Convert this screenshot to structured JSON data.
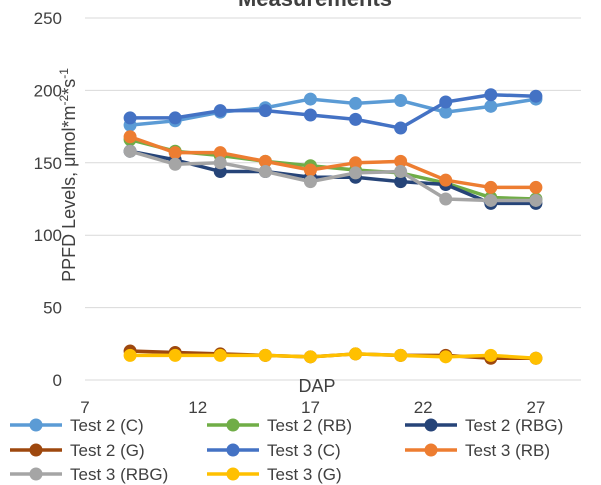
{
  "chart_data": {
    "type": "line",
    "title": "Measurements",
    "xlabel": "DAP",
    "ylabel": "PPFD Levels, μmol*m",
    "ylabel_sup1": "-2",
    "ylabel_mid": "*s",
    "ylabel_sup2": "-1",
    "x": [
      9,
      11,
      13,
      15,
      17,
      19,
      21,
      23,
      25,
      27
    ],
    "xlim": [
      7,
      29
    ],
    "ylim": [
      0,
      250
    ],
    "xticks": [
      7,
      12,
      17,
      22,
      27
    ],
    "yticks": [
      0,
      50,
      100,
      150,
      200,
      250
    ],
    "grid": "horizontal",
    "legend_position": "bottom",
    "series": [
      {
        "name": "Test 2 (C)",
        "color": "#5B9BD5",
        "values": [
          176,
          179,
          185,
          188,
          194,
          191,
          193,
          185,
          189,
          194
        ]
      },
      {
        "name": "Test 2 (RB)",
        "color": "#70AD47",
        "values": [
          166,
          158,
          155,
          151,
          148,
          145,
          143,
          136,
          126,
          125
        ]
      },
      {
        "name": "Test 2 (RBG)",
        "color": "#264478",
        "values": [
          158,
          152,
          144,
          144,
          140,
          140,
          137,
          135,
          122,
          122
        ]
      },
      {
        "name": "Test 2 (G)",
        "color": "#9E480E",
        "values": [
          20,
          19,
          18,
          17,
          16,
          18,
          17,
          17,
          15,
          15
        ]
      },
      {
        "name": "Test 3 (C)",
        "color": "#4472C4",
        "values": [
          181,
          181,
          186,
          186,
          183,
          180,
          174,
          192,
          197,
          196
        ]
      },
      {
        "name": "Test 3 (RB)",
        "color": "#ED7D31",
        "values": [
          168,
          157,
          157,
          151,
          145,
          150,
          151,
          138,
          133,
          133
        ]
      },
      {
        "name": "Test 3 (RBG)",
        "color": "#A5A5A5",
        "values": [
          158,
          149,
          150,
          144,
          137,
          143,
          144,
          125,
          124,
          124
        ]
      },
      {
        "name": "Test 3 (G)",
        "color": "#FFC000",
        "values": [
          17,
          17,
          17,
          17,
          16,
          18,
          17,
          16,
          17,
          15
        ]
      }
    ]
  }
}
